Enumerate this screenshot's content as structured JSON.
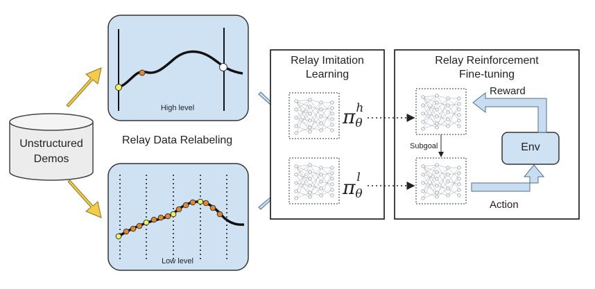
{
  "demos": {
    "line1": "Unstructured",
    "line2": "Demos"
  },
  "relabeling": {
    "title": "Relay Data Relabeling"
  },
  "high_panel": {
    "caption": "High level"
  },
  "low_panel": {
    "caption": "Low level"
  },
  "imitation": {
    "title_line1": "Relay Imitation",
    "title_line2": "Learning"
  },
  "finetune": {
    "title_line1": "Relay Reinforcement",
    "title_line2": "Fine-tuning",
    "subgoal": "Subgoal",
    "reward": "Reward",
    "action": "Action",
    "env": "Env"
  },
  "policies": {
    "high": {
      "symbol": "π",
      "sup": "h",
      "sub": "θ"
    },
    "low": {
      "symbol": "π",
      "sup": "l",
      "sub": "θ"
    }
  },
  "colors": {
    "panel_fill": "#cfe2f3",
    "arrow_yellow": "#f5cc4a",
    "arrow_blue": "#c9ddf0",
    "point_orange": "#e8862a",
    "point_yellow": "#f2ef5c"
  }
}
